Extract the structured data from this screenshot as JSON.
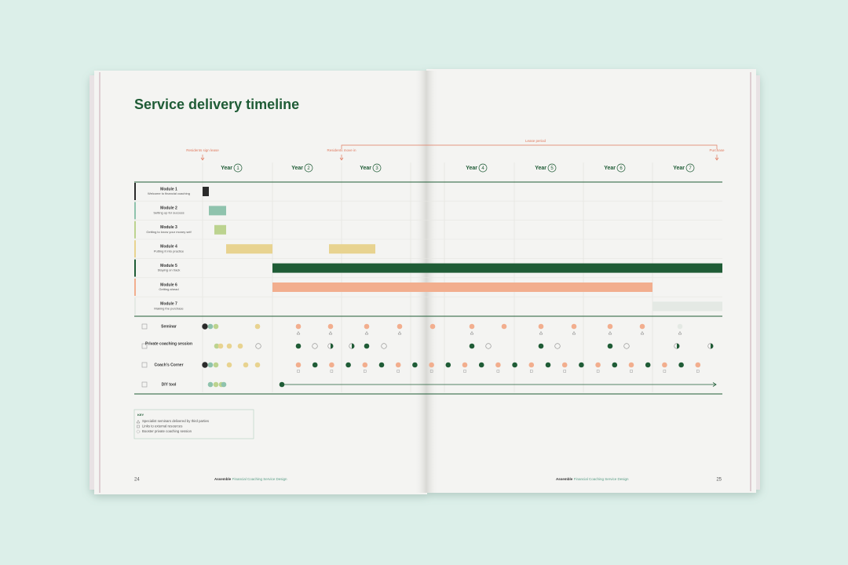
{
  "title": "Service delivery timeline",
  "annotations": [
    {
      "text": "Residents sign lease"
    },
    {
      "text": "Residents move in"
    },
    {
      "text": "Lease period"
    },
    {
      "text": "Purchase"
    }
  ],
  "years": [
    {
      "label": "Year",
      "number": 1
    },
    {
      "label": "Year",
      "number": 2
    },
    {
      "label": "Year",
      "number": 3
    },
    {
      "label": "Year",
      "number": 4
    },
    {
      "label": "Year",
      "number": 5
    },
    {
      "label": "Year",
      "number": 6
    },
    {
      "label": "Year",
      "number": 7
    }
  ],
  "modules": [
    {
      "name": "Module 1",
      "subtitle": "Welcome to financial coaching"
    },
    {
      "name": "Module 2",
      "subtitle": "Setting up for success"
    },
    {
      "name": "Module 3",
      "subtitle": "Getting to know your money self"
    },
    {
      "name": "Module 4",
      "subtitle": "Putting it into practice"
    },
    {
      "name": "Module 5",
      "subtitle": "Staying on track"
    },
    {
      "name": "Module 6",
      "subtitle": "Getting ahead"
    },
    {
      "name": "Module 7",
      "subtitle": "Making the purchase"
    }
  ],
  "services": [
    "Seminar",
    "Private coaching session",
    "Coach's Corner",
    "DIY tool"
  ],
  "key": {
    "title": "KEY",
    "items": [
      "Specialist seminars delivered by third parties",
      "Links to external resources",
      "Booster private coaching session"
    ]
  },
  "footer": {
    "brand": "Assemble",
    "text": "Financial Coaching Service Design"
  },
  "page_numbers": [
    "24",
    "25"
  ]
}
